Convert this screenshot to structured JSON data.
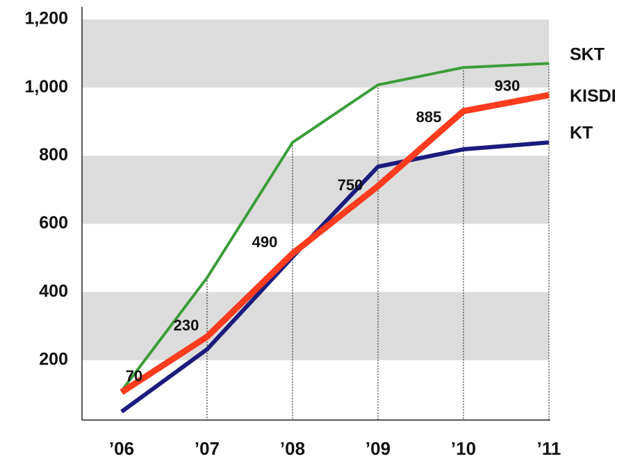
{
  "chart_data": {
    "type": "line",
    "categories": [
      "’06",
      "’07",
      "’08",
      "’09",
      "’10",
      "’11"
    ],
    "series": [
      {
        "name": "SKT",
        "color": "#3c9c3a",
        "values": [
          110,
          442,
          839,
          1008,
          1059,
          1071
        ]
      },
      {
        "name": "KISDI",
        "color": "#ff3c1e",
        "values": [
          106,
          269,
          513,
          711,
          931,
          978
        ]
      },
      {
        "name": "KT",
        "color": "#1c1c7e",
        "values": [
          49,
          232,
          503,
          768,
          819,
          839
        ]
      }
    ],
    "annotations": [
      "70",
      "230",
      "490",
      "750",
      "885",
      "930"
    ],
    "ylim": [
      0,
      1200
    ],
    "yticks": [
      {
        "value": 200,
        "label": "200"
      },
      {
        "value": 400,
        "label": "400"
      },
      {
        "value": 600,
        "label": "600"
      },
      {
        "value": 800,
        "label": "800"
      },
      {
        "value": 1000,
        "label": "1,000"
      },
      {
        "value": 1200,
        "label": "1,200"
      }
    ],
    "grid": "bands"
  }
}
